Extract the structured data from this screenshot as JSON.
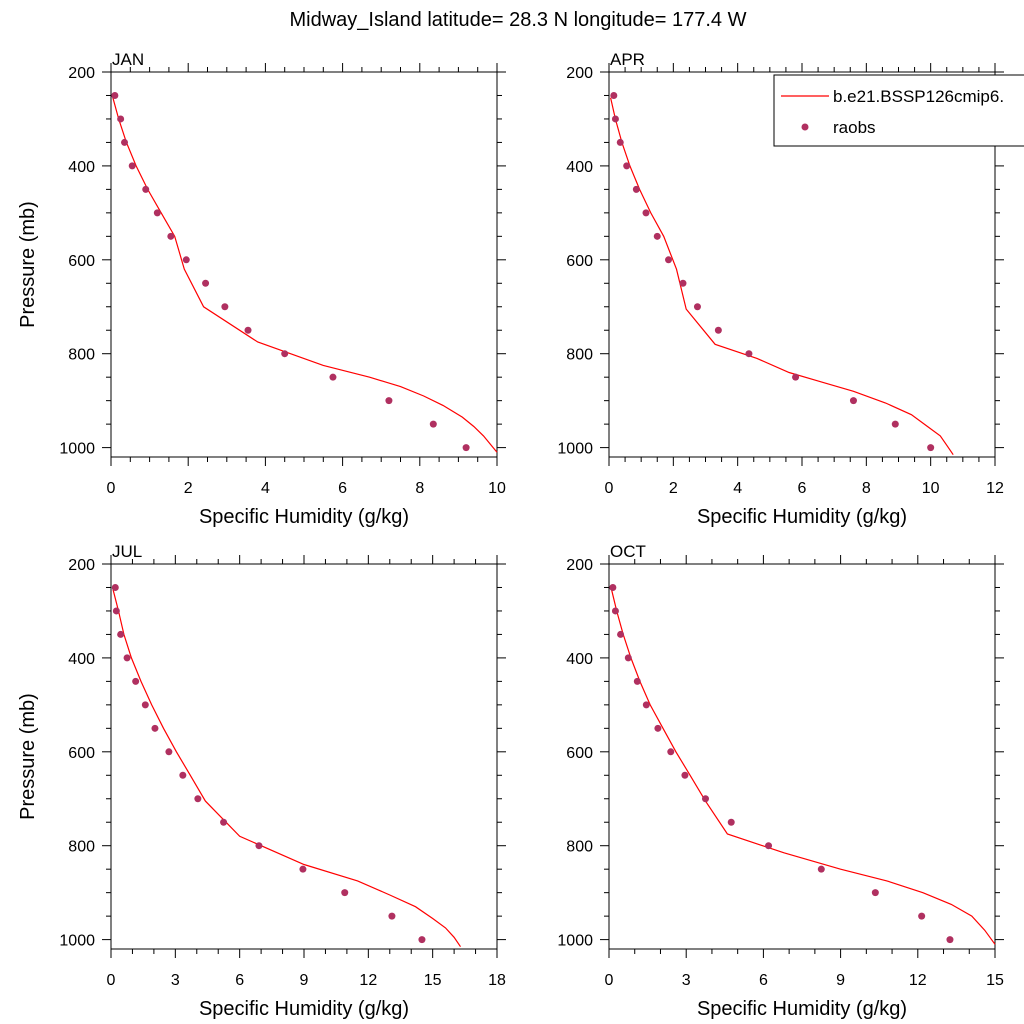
{
  "title": "Midway_Island  latitude= 28.3 N longitude= 177.4 W",
  "colors": {
    "model_line": "#ff0000",
    "obs_marker": "#b03060",
    "axes": "#000000",
    "background": "#ffffff"
  },
  "legend": {
    "placement": "top-right",
    "entries": [
      {
        "label": "b.e21.BSSP126cmip6.",
        "style": "line"
      },
      {
        "label": "raobs",
        "style": "marker"
      }
    ]
  },
  "chart_data": [
    {
      "type": "line",
      "panel_label": "JAN",
      "xlabel": "Specific Humidity (g/kg)",
      "ylabel": "Pressure (mb)",
      "xlim": [
        0,
        10
      ],
      "ylim": [
        1020,
        200
      ],
      "xticks": [
        "0",
        "2",
        "4",
        "6",
        "8",
        "10"
      ],
      "yticks": [
        "200",
        "400",
        "600",
        "800",
        "1000"
      ],
      "series": [
        {
          "name": "b.e21.BSSP126cmip6.",
          "kind": "line",
          "x": [
            0.05,
            0.2,
            0.4,
            0.65,
            0.95,
            1.3,
            1.65,
            1.9,
            2.4,
            3.8,
            5.5,
            6.7,
            7.5,
            8.1,
            8.6,
            9.1,
            9.4,
            9.65,
            9.85,
            10.0
          ],
          "y": [
            255,
            300,
            350,
            400,
            450,
            500,
            550,
            620,
            700,
            775,
            825,
            850,
            870,
            890,
            910,
            935,
            955,
            975,
            995,
            1010
          ]
        },
        {
          "name": "raobs",
          "kind": "marker",
          "x": [
            0.1,
            0.25,
            0.35,
            0.55,
            0.9,
            1.2,
            1.55,
            1.95,
            2.45,
            2.95,
            3.55,
            4.5,
            5.75,
            7.2,
            8.35,
            9.2
          ],
          "y": [
            250,
            300,
            350,
            400,
            450,
            500,
            550,
            600,
            650,
            700,
            750,
            800,
            850,
            900,
            950,
            1000
          ]
        }
      ]
    },
    {
      "type": "line",
      "panel_label": "APR",
      "xlabel": "Specific Humidity (g/kg)",
      "ylabel": "",
      "xlim": [
        0,
        12
      ],
      "ylim": [
        1020,
        200
      ],
      "xticks": [
        "0",
        "2",
        "4",
        "6",
        "8",
        "10",
        "12"
      ],
      "yticks": [
        "200",
        "400",
        "600",
        "800",
        "1000"
      ],
      "series": [
        {
          "name": "b.e21.BSSP126cmip6.",
          "kind": "line",
          "x": [
            0.05,
            0.2,
            0.4,
            0.65,
            0.95,
            1.3,
            1.7,
            2.1,
            2.4,
            3.3,
            4.6,
            5.6,
            6.6,
            7.6,
            8.6,
            9.4,
            9.9,
            10.3,
            10.5,
            10.7
          ],
          "y": [
            255,
            300,
            350,
            400,
            450,
            500,
            550,
            620,
            705,
            780,
            810,
            840,
            860,
            880,
            905,
            930,
            955,
            975,
            995,
            1015
          ]
        },
        {
          "name": "raobs",
          "kind": "marker",
          "x": [
            0.15,
            0.2,
            0.35,
            0.55,
            0.85,
            1.15,
            1.5,
            1.85,
            2.3,
            2.75,
            3.4,
            4.35,
            5.8,
            7.6,
            8.9,
            10.0
          ],
          "y": [
            250,
            300,
            350,
            400,
            450,
            500,
            550,
            600,
            650,
            700,
            750,
            800,
            850,
            900,
            950,
            1000
          ]
        }
      ]
    },
    {
      "type": "line",
      "panel_label": "JUL",
      "xlabel": "Specific Humidity (g/kg)",
      "ylabel": "Pressure (mb)",
      "xlim": [
        0,
        18
      ],
      "ylim": [
        1020,
        200
      ],
      "xticks": [
        "0",
        "3",
        "6",
        "9",
        "12",
        "15",
        "18"
      ],
      "yticks": [
        "200",
        "400",
        "600",
        "800",
        "1000"
      ],
      "series": [
        {
          "name": "b.e21.BSSP126cmip6.",
          "kind": "line",
          "x": [
            0.1,
            0.35,
            0.6,
            0.95,
            1.4,
            1.9,
            2.45,
            3.05,
            3.7,
            4.4,
            6.0,
            9.0,
            11.5,
            13.0,
            14.2,
            15.0,
            15.6,
            16.0,
            16.3
          ],
          "y": [
            255,
            300,
            350,
            400,
            450,
            500,
            550,
            600,
            650,
            705,
            780,
            840,
            875,
            905,
            930,
            955,
            975,
            995,
            1015
          ]
        },
        {
          "name": "raobs",
          "kind": "marker",
          "x": [
            0.2,
            0.25,
            0.45,
            0.75,
            1.15,
            1.6,
            2.05,
            2.7,
            3.35,
            4.05,
            5.25,
            6.9,
            8.95,
            10.9,
            13.1,
            14.5
          ],
          "y": [
            250,
            300,
            350,
            400,
            450,
            500,
            550,
            600,
            650,
            700,
            750,
            800,
            850,
            900,
            950,
            1000
          ]
        }
      ]
    },
    {
      "type": "line",
      "panel_label": "OCT",
      "xlabel": "Specific Humidity (g/kg)",
      "ylabel": "",
      "xlim": [
        0,
        15
      ],
      "ylim": [
        1020,
        200
      ],
      "xticks": [
        "0",
        "3",
        "6",
        "9",
        "12",
        "15"
      ],
      "yticks": [
        "200",
        "400",
        "600",
        "800",
        "1000"
      ],
      "series": [
        {
          "name": "b.e21.BSSP126cmip6.",
          "kind": "line",
          "x": [
            0.1,
            0.3,
            0.55,
            0.85,
            1.2,
            1.6,
            2.1,
            2.6,
            3.15,
            3.75,
            4.6,
            6.8,
            9.0,
            10.8,
            12.2,
            13.3,
            14.1,
            14.6,
            15.0
          ],
          "y": [
            255,
            300,
            350,
            400,
            450,
            500,
            550,
            600,
            650,
            705,
            775,
            815,
            850,
            875,
            900,
            925,
            950,
            980,
            1010
          ]
        },
        {
          "name": "raobs",
          "kind": "marker",
          "x": [
            0.15,
            0.25,
            0.45,
            0.75,
            1.1,
            1.45,
            1.9,
            2.4,
            2.95,
            3.75,
            4.75,
            6.2,
            8.25,
            10.35,
            12.15,
            13.25
          ],
          "y": [
            250,
            300,
            350,
            400,
            450,
            500,
            550,
            600,
            650,
            700,
            750,
            800,
            850,
            900,
            950,
            1000
          ]
        }
      ]
    }
  ]
}
